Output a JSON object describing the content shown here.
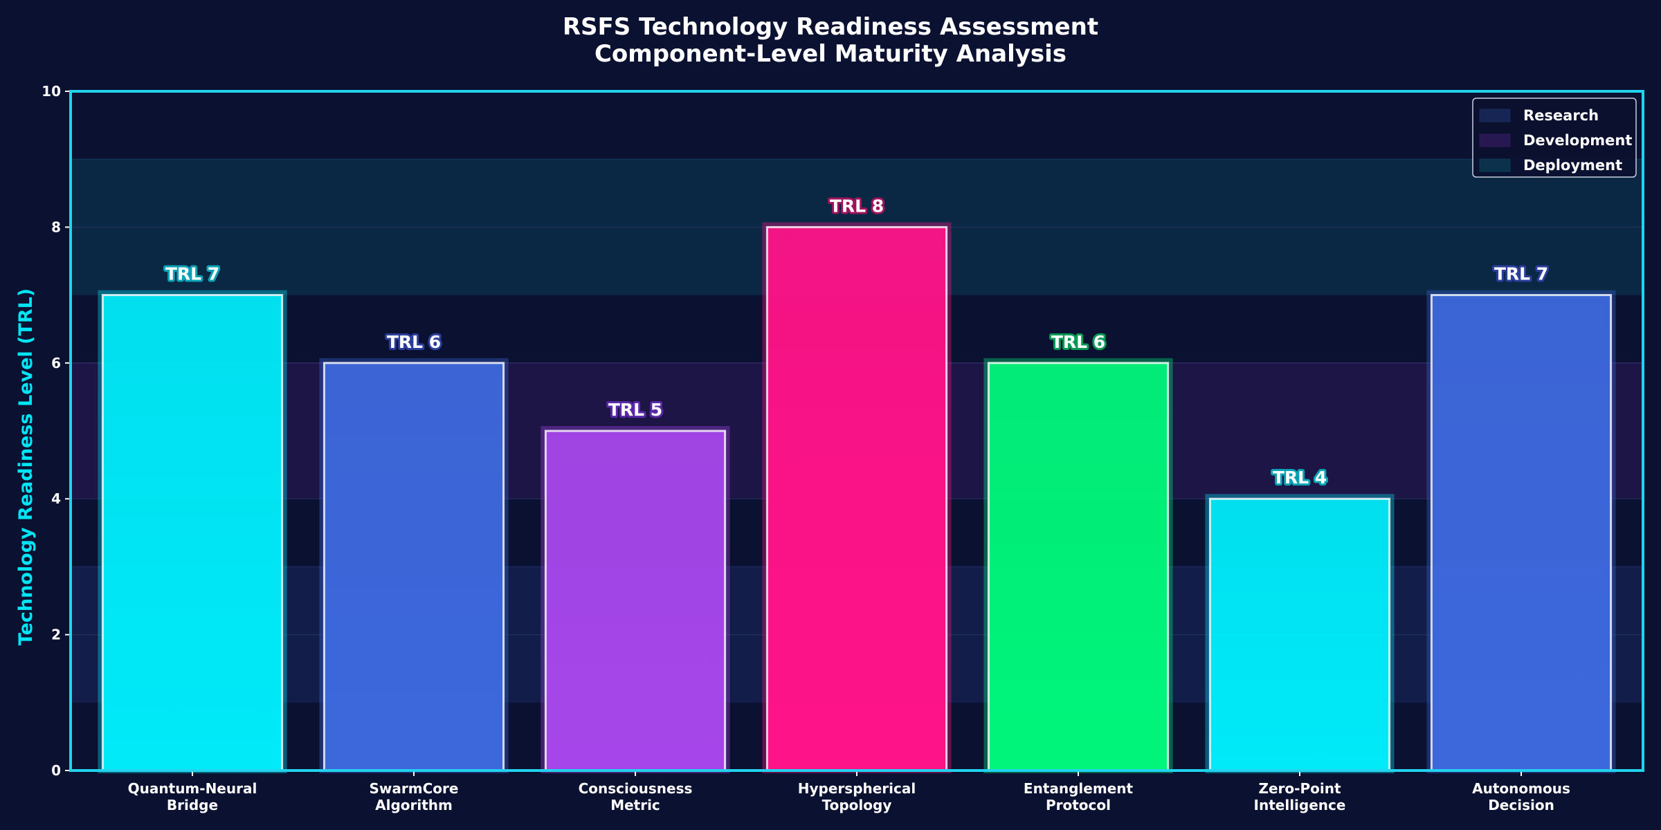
{
  "chart_data": {
    "type": "bar",
    "title": "RSFS Technology Readiness Assessment",
    "subtitle": "Component-Level Maturity Analysis",
    "xlabel": "",
    "ylabel": "Technology Readiness Level (TRL)",
    "ylim": [
      0,
      10
    ],
    "yticks": [
      "0",
      "2",
      "4",
      "6",
      "8",
      "10"
    ],
    "categories": [
      [
        "Quantum-Neural",
        "Bridge"
      ],
      [
        "SwarmCore",
        "Algorithm"
      ],
      [
        "Consciousness",
        "Metric"
      ],
      [
        "Hyperspherical",
        "Topology"
      ],
      [
        "Entanglement",
        "Protocol"
      ],
      [
        "Zero-Point",
        "Intelligence"
      ],
      [
        "Autonomous",
        "Decision"
      ]
    ],
    "values": [
      7,
      6,
      5,
      8,
      6,
      4,
      7
    ],
    "data_labels": [
      "TRL 7",
      "TRL 6",
      "TRL 5",
      "TRL 8",
      "TRL 6",
      "TRL 4",
      "TRL 7"
    ],
    "bar_colors": [
      "#00eaf8",
      "#3d68dc",
      "#a646ea",
      "#ff1388",
      "#00f57a",
      "#00eaf8",
      "#3d68dc"
    ],
    "label_outline_colors": [
      "#0aa2b5",
      "#2c3e9c",
      "#5a2aa8",
      "#a0145e",
      "#0a9a55",
      "#0aa2b5",
      "#2c3e9c"
    ],
    "phase_bands": [
      {
        "name": "Research",
        "range": [
          1,
          3
        ],
        "color": "#1a2a5e"
      },
      {
        "name": "Development",
        "range": [
          4,
          6
        ],
        "color": "#2e1a5a"
      },
      {
        "name": "Deployment",
        "range": [
          7,
          9
        ],
        "color": "#0b3a55"
      }
    ],
    "legend": {
      "position": "top-right",
      "entries": [
        "Research",
        "Development",
        "Deployment"
      ]
    },
    "grid": true,
    "colors": {
      "background": "#0b1130",
      "axis": "#22d3ee",
      "text": "#ffffff",
      "ylabel": "#00e5f5"
    }
  }
}
